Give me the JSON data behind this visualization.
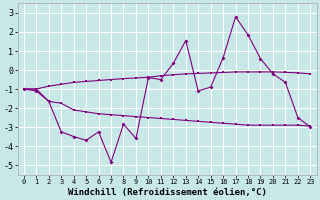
{
  "xlabel": "Windchill (Refroidissement éolien,°C)",
  "background_color": "#c8e8e8",
  "grid_color": "#ffffff",
  "line_color": "#800080",
  "x_values": [
    0,
    1,
    2,
    3,
    4,
    5,
    6,
    7,
    8,
    9,
    10,
    11,
    12,
    13,
    14,
    15,
    16,
    17,
    18,
    19,
    20,
    21,
    22,
    23
  ],
  "upper_line": [
    -1.0,
    -1.0,
    -0.85,
    -0.75,
    -0.65,
    -0.6,
    -0.55,
    -0.5,
    -0.45,
    -0.42,
    -0.38,
    -0.3,
    -0.25,
    -0.2,
    -0.18,
    -0.15,
    -0.13,
    -0.1,
    -0.1,
    -0.1,
    -0.1,
    -0.12,
    -0.15,
    -0.2
  ],
  "lower_line": [
    -1.0,
    -1.0,
    -1.65,
    -1.75,
    -2.1,
    -2.2,
    -2.3,
    -2.35,
    -2.4,
    -2.45,
    -2.5,
    -2.55,
    -2.6,
    -2.65,
    -2.7,
    -2.75,
    -2.8,
    -2.85,
    -2.9,
    -2.9,
    -2.9,
    -2.9,
    -2.9,
    -2.95
  ],
  "main_line": [
    -1.0,
    -1.1,
    -1.65,
    -3.25,
    -3.5,
    -3.7,
    -3.25,
    -4.85,
    -2.85,
    -3.6,
    -0.4,
    -0.5,
    0.35,
    1.55,
    -1.1,
    -0.9,
    0.65,
    2.8,
    1.85,
    0.6,
    -0.2,
    -0.65,
    -2.5,
    -3.0
  ],
  "ylim": [
    -5.5,
    3.5
  ],
  "yticks": [
    -5,
    -4,
    -3,
    -2,
    -1,
    0,
    1,
    2,
    3
  ],
  "xlim": [
    -0.5,
    23.5
  ]
}
